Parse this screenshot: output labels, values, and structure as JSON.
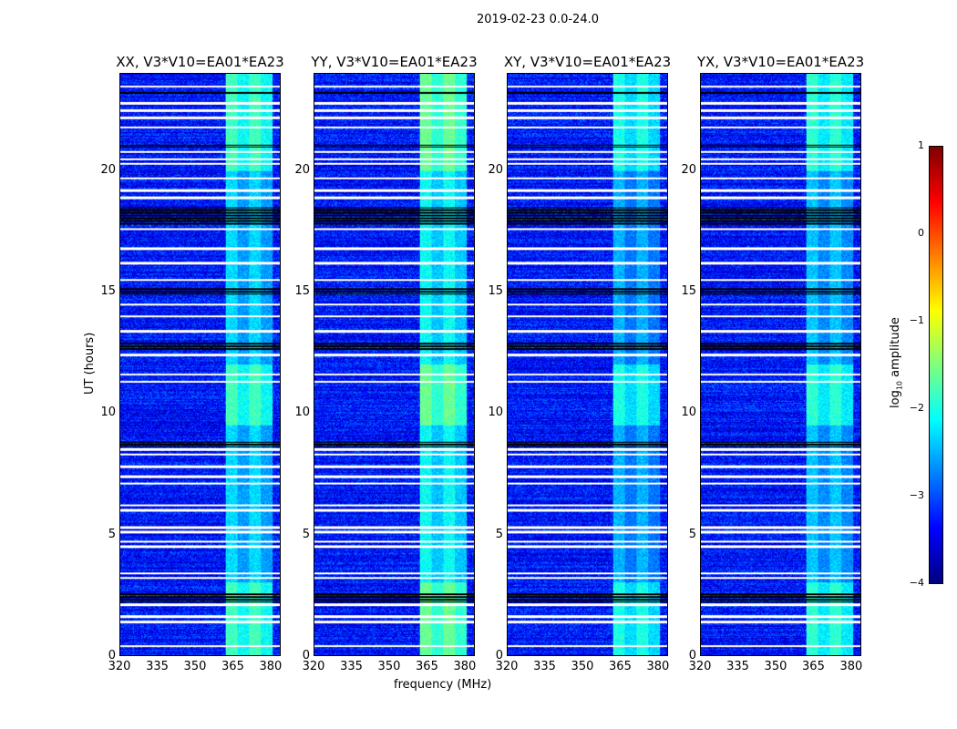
{
  "chart_data": {
    "type": "heatmap",
    "title": "2019-02-23 0.0-24.0",
    "xlabel": "frequency (MHz)",
    "ylabel": "UT (hours)",
    "xlim": [
      320,
      384
    ],
    "ylim": [
      0,
      24
    ],
    "xticks": [
      "320",
      "335",
      "350",
      "365",
      "380"
    ],
    "yticks": [
      "0",
      "5",
      "10",
      "15",
      "20"
    ],
    "panels": [
      {
        "title": "XX, V3*V10=EA01*EA23",
        "rfi_level": -1.6
      },
      {
        "title": "YY, V3*V10=EA01*EA23",
        "rfi_level": -1.4
      },
      {
        "title": "XY, V3*V10=EA01*EA23",
        "rfi_level": -1.8
      },
      {
        "title": "YX, V3*V10=EA01*EA23",
        "rfi_level": -1.7
      }
    ],
    "background_level": -3.3,
    "rfi_band_mhz": [
      362,
      381
    ],
    "flagged_hours_white": [
      0.4,
      1.4,
      1.6,
      2.1,
      3.2,
      3.4,
      4.5,
      4.7,
      5.1,
      5.3,
      6.0,
      6.2,
      7.1,
      7.4,
      7.8,
      8.3,
      8.5,
      11.3,
      11.6,
      12.4,
      13.4,
      14.0,
      14.5,
      15.5,
      16.2,
      16.8,
      17.6,
      18.9,
      19.2,
      19.7,
      20.3,
      20.5,
      20.8,
      21.8,
      22.2,
      22.5,
      22.8,
      23.5
    ],
    "flagged_hours_black": [
      [
        2.2,
        2.6
      ],
      [
        8.6,
        8.85
      ],
      [
        12.6,
        12.9
      ],
      [
        14.9,
        15.2
      ],
      [
        17.8,
        18.5
      ],
      [
        21.0,
        21.1
      ],
      [
        23.2,
        23.3
      ]
    ],
    "colorbar": {
      "label": "log10 amplitude",
      "label_main": "log",
      "label_sub": "10",
      "label_rest": " amplitude",
      "range": [
        -4,
        1
      ],
      "ticks": [
        "1",
        "0",
        "−1",
        "−2",
        "−3",
        "−4"
      ]
    }
  }
}
